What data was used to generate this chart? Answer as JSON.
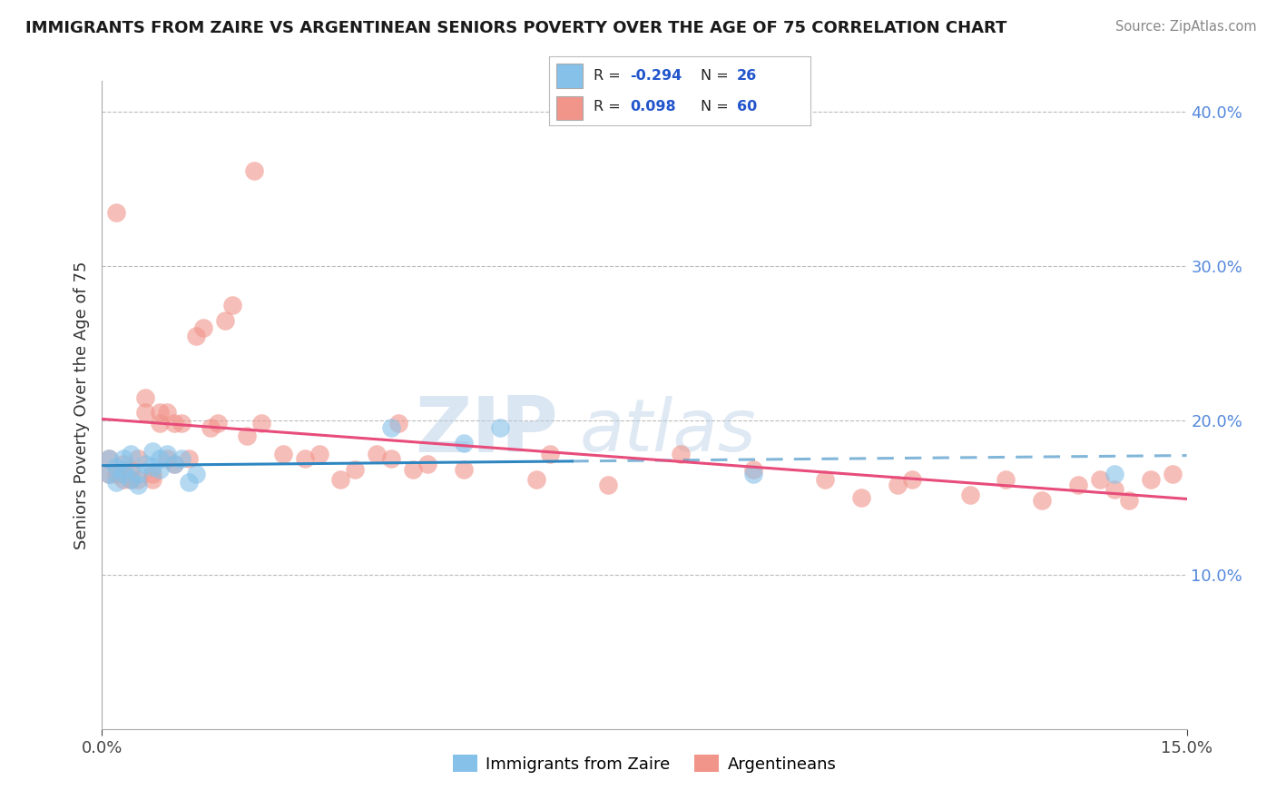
{
  "title": "IMMIGRANTS FROM ZAIRE VS ARGENTINEAN SENIORS POVERTY OVER THE AGE OF 75 CORRELATION CHART",
  "source": "Source: ZipAtlas.com",
  "ylabel": "Seniors Poverty Over the Age of 75",
  "legend_label1": "Immigrants from Zaire",
  "legend_label2": "Argentineans",
  "R1": -0.294,
  "N1": 26,
  "R2": 0.098,
  "N2": 60,
  "color1": "#85c1e9",
  "color2": "#f1948a",
  "line_color1": "#2e86c1",
  "line_color2": "#e74c7a",
  "xlim": [
    0.0,
    0.15
  ],
  "ylim": [
    0.0,
    0.42
  ],
  "yticks_right": [
    0.1,
    0.2,
    0.3,
    0.4
  ],
  "ytick_labels_right": [
    "10.0%",
    "20.0%",
    "30.0%",
    "40.0%"
  ],
  "watermark_zip": "ZIP",
  "watermark_atlas": "atlas",
  "watermark_color_zip": "#b8cfe8",
  "watermark_color_atlas": "#b8cfe8",
  "blue_points_x": [
    0.001,
    0.001,
    0.002,
    0.002,
    0.003,
    0.003,
    0.003,
    0.004,
    0.004,
    0.005,
    0.005,
    0.006,
    0.007,
    0.007,
    0.008,
    0.008,
    0.009,
    0.01,
    0.011,
    0.012,
    0.013,
    0.04,
    0.05,
    0.055,
    0.09,
    0.14
  ],
  "blue_points_y": [
    0.175,
    0.165,
    0.16,
    0.17,
    0.165,
    0.175,
    0.168,
    0.162,
    0.178,
    0.158,
    0.165,
    0.172,
    0.17,
    0.18,
    0.168,
    0.175,
    0.178,
    0.172,
    0.175,
    0.16,
    0.165,
    0.195,
    0.185,
    0.195,
    0.165,
    0.165
  ],
  "pink_points_x": [
    0.001,
    0.001,
    0.002,
    0.002,
    0.003,
    0.003,
    0.004,
    0.004,
    0.005,
    0.005,
    0.006,
    0.006,
    0.007,
    0.007,
    0.008,
    0.008,
    0.009,
    0.009,
    0.01,
    0.01,
    0.011,
    0.012,
    0.013,
    0.014,
    0.015,
    0.016,
    0.017,
    0.018,
    0.02,
    0.021,
    0.022,
    0.025,
    0.028,
    0.03,
    0.033,
    0.035,
    0.038,
    0.04,
    0.041,
    0.043,
    0.045,
    0.05,
    0.06,
    0.062,
    0.07,
    0.08,
    0.09,
    0.1,
    0.105,
    0.11,
    0.112,
    0.12,
    0.125,
    0.13,
    0.135,
    0.138,
    0.14,
    0.142,
    0.145,
    0.148
  ],
  "pink_points_y": [
    0.165,
    0.175,
    0.165,
    0.335,
    0.162,
    0.172,
    0.168,
    0.162,
    0.175,
    0.162,
    0.215,
    0.205,
    0.165,
    0.162,
    0.205,
    0.198,
    0.175,
    0.205,
    0.198,
    0.172,
    0.198,
    0.175,
    0.255,
    0.26,
    0.195,
    0.198,
    0.265,
    0.275,
    0.19,
    0.362,
    0.198,
    0.178,
    0.175,
    0.178,
    0.162,
    0.168,
    0.178,
    0.175,
    0.198,
    0.168,
    0.172,
    0.168,
    0.162,
    0.178,
    0.158,
    0.178,
    0.168,
    0.162,
    0.15,
    0.158,
    0.162,
    0.152,
    0.162,
    0.148,
    0.158,
    0.162,
    0.155,
    0.148,
    0.162,
    0.165
  ]
}
